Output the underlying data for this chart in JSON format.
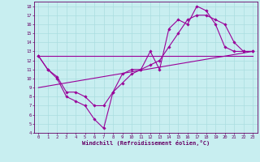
{
  "xlabel": "Windchill (Refroidissement éolien,°C)",
  "background_color": "#c8eef0",
  "line_color": "#990099",
  "xlim": [
    -0.5,
    23.5
  ],
  "ylim": [
    4,
    18.5
  ],
  "xticks": [
    0,
    1,
    2,
    3,
    4,
    5,
    6,
    7,
    8,
    9,
    10,
    11,
    12,
    13,
    14,
    15,
    16,
    17,
    18,
    19,
    20,
    21,
    22,
    23
  ],
  "yticks": [
    4,
    5,
    6,
    7,
    8,
    9,
    10,
    11,
    12,
    13,
    14,
    15,
    16,
    17,
    18
  ],
  "curve1_x": [
    0,
    1,
    2,
    3,
    4,
    5,
    6,
    7,
    8,
    9,
    10,
    11,
    12,
    13,
    14,
    15,
    16,
    17,
    18,
    19,
    20,
    21,
    22,
    23
  ],
  "curve1_y": [
    12.5,
    11.0,
    10.0,
    8.0,
    7.5,
    7.0,
    5.5,
    4.5,
    8.5,
    10.5,
    11.0,
    11.0,
    13.0,
    11.0,
    15.5,
    16.5,
    16.0,
    18.0,
    17.5,
    16.0,
    13.5,
    13.0,
    13.0,
    13.0
  ],
  "curve2_x": [
    0,
    1,
    2,
    3,
    4,
    5,
    6,
    7,
    8,
    9,
    10,
    11,
    12,
    13,
    14,
    15,
    16,
    17,
    18,
    19,
    20,
    21,
    22,
    23
  ],
  "curve2_y": [
    12.5,
    11.0,
    10.2,
    8.5,
    8.5,
    8.0,
    7.0,
    7.0,
    8.5,
    9.5,
    10.5,
    11.0,
    11.5,
    12.0,
    13.5,
    15.0,
    16.5,
    17.0,
    17.0,
    16.5,
    16.0,
    14.0,
    13.0,
    13.0
  ],
  "line3_x": [
    0,
    23
  ],
  "line3_y": [
    9.0,
    13.0
  ],
  "line4_x": [
    0,
    23
  ],
  "line4_y": [
    12.5,
    12.5
  ]
}
